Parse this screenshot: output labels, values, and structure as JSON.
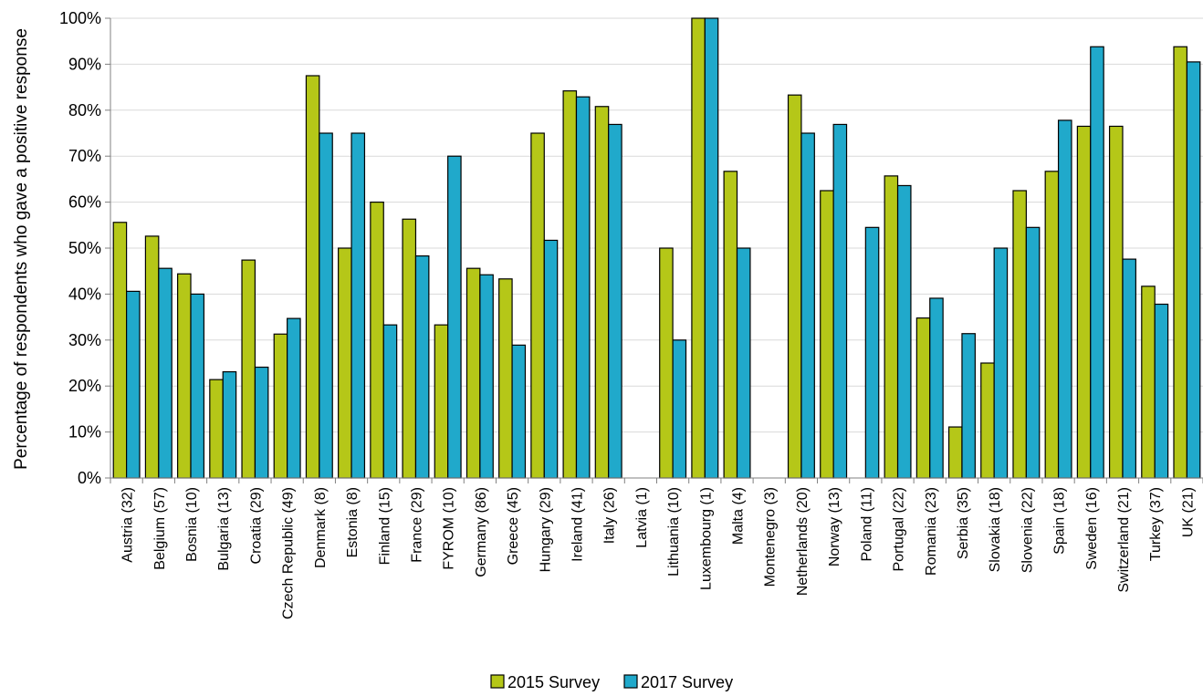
{
  "chart_data": {
    "type": "bar",
    "title": "",
    "xlabel": "",
    "ylabel": "Percentage of respondents who gave a positive response",
    "ylim": [
      0,
      100
    ],
    "yticks": [
      "0%",
      "10%",
      "20%",
      "30%",
      "40%",
      "50%",
      "60%",
      "70%",
      "80%",
      "90%",
      "100%"
    ],
    "grid": true,
    "legend_position": "bottom",
    "categories": [
      "Austria (32)",
      "Belgium (57)",
      "Bosnia (10)",
      "Bulgaria (13)",
      "Croatia (29)",
      "Czech Republic (49)",
      "Denmark (8)",
      "Estonia (8)",
      "Finland (15)",
      "France (29)",
      "FYROM (10)",
      "Germany (86)",
      "Greece (45)",
      "Hungary (29)",
      "Ireland (41)",
      "Italy (26)",
      "Latvia (1)",
      "Lithuania (10)",
      "Luxembourg (1)",
      "Malta (4)",
      "Montenegro (3)",
      "Netherlands (20)",
      "Norway (13)",
      "Poland (11)",
      "Portugal (22)",
      "Romania (23)",
      "Serbia (35)",
      "Slovakia (18)",
      "Slovenia (22)",
      "Spain (18)",
      "Sweden (16)",
      "Switzerland (21)",
      "Turkey (37)",
      "UK (21)"
    ],
    "series": [
      {
        "name": "2015 Survey",
        "color": "#b5c718",
        "values": [
          55.6,
          52.6,
          44.4,
          21.4,
          47.4,
          31.3,
          87.5,
          50,
          60,
          56.3,
          33.3,
          45.6,
          43.3,
          75,
          84.2,
          80.8,
          0,
          50,
          100,
          66.7,
          0,
          83.3,
          62.5,
          0,
          65.7,
          34.8,
          11.1,
          25,
          62.5,
          66.7,
          76.5,
          76.5,
          41.7,
          93.8
        ]
      },
      {
        "name": "2017 Survey",
        "color": "#20a9cb",
        "values": [
          40.6,
          45.6,
          40,
          23.1,
          24.1,
          34.7,
          75,
          75,
          33.3,
          48.3,
          70,
          44.2,
          28.9,
          51.7,
          82.9,
          76.9,
          0,
          30,
          100,
          50,
          0,
          75,
          76.9,
          54.5,
          63.6,
          39.1,
          31.4,
          50,
          54.5,
          77.8,
          93.8,
          47.6,
          37.8,
          90.5
        ]
      }
    ]
  }
}
